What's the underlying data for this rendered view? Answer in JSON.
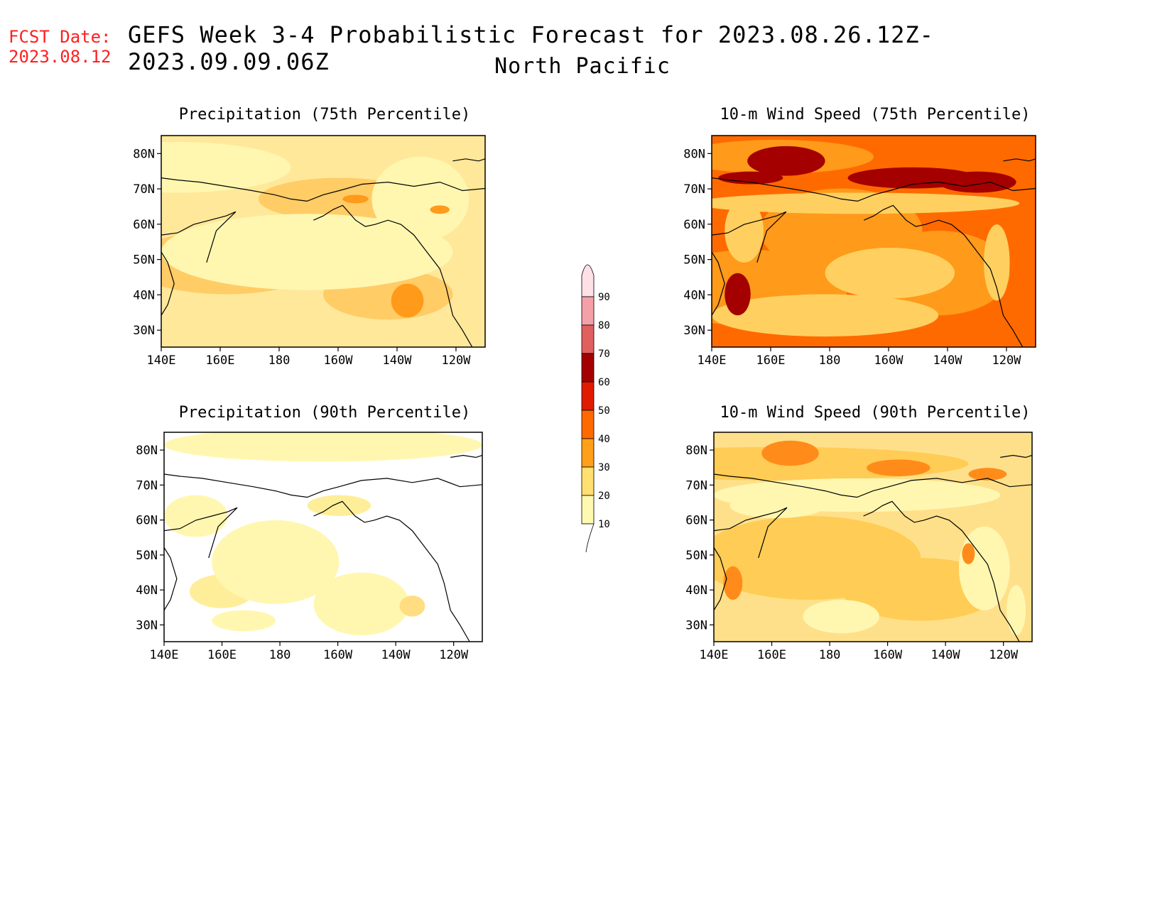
{
  "header": {
    "fcst_label": "FCST Date:",
    "fcst_date": "2023.08.12",
    "title": "GEFS Week 3-4 Probabilistic Forecast for 2023.08.26.12Z-2023.09.09.06Z",
    "subtitle": "North Pacific"
  },
  "axes": {
    "lat_ticks": [
      "80N",
      "70N",
      "60N",
      "50N",
      "40N",
      "30N"
    ],
    "lon_ticks": [
      "140E",
      "160E",
      "180",
      "160W",
      "140W",
      "120W"
    ]
  },
  "panels": [
    {
      "title": "Precipitation (75th Percentile)",
      "base_fill": "#ffe89a",
      "light_fill": "#fff7b0",
      "blob_fill": "#ffcc66",
      "accent_fill": "#ff9a1a"
    },
    {
      "title": "10-m Wind Speed (75th Percentile)",
      "base_fill": "#ff6a00",
      "light_fill": "#ffd060",
      "blob_fill": "#ff9a1a",
      "accent_fill": "#a40000"
    },
    {
      "title": "Precipitation (90th Percentile)",
      "base_fill": "#ffffff",
      "light_fill": "#fff7b0",
      "blob_fill": "#ffee99",
      "accent_fill": "#ffdd80"
    },
    {
      "title": "10-m Wind Speed (90th Percentile)",
      "base_fill": "#ffe08a",
      "light_fill": "#fff7b0",
      "blob_fill": "#ffcc55",
      "accent_fill": "#ff8c1a"
    }
  ],
  "colorbar": {
    "labels": [
      "90",
      "80",
      "70",
      "60",
      "50",
      "40",
      "30",
      "20",
      "10"
    ],
    "colors": [
      "#ffe0e6",
      "#f4a0a8",
      "#e06060",
      "#a40000",
      "#e01c00",
      "#ff6a00",
      "#ffa01a",
      "#ffe070",
      "#fff8b0"
    ]
  }
}
